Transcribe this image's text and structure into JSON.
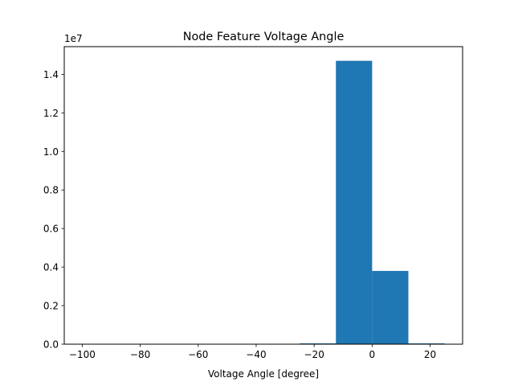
{
  "chart_data": {
    "type": "bar",
    "title": "Node Feature Voltage Angle",
    "xlabel": "Voltage Angle [degree]",
    "ylabel": "",
    "y_offset_label": "1e7",
    "xlim": [
      -106.2,
      31.2
    ],
    "ylim": [
      0,
      15435000
    ],
    "x_ticks": [
      -100,
      -80,
      -60,
      -40,
      -20,
      0,
      20
    ],
    "x_tick_labels": [
      "−100",
      "−80",
      "−60",
      "−40",
      "−20",
      "0",
      "20"
    ],
    "y_ticks": [
      0,
      2000000,
      4000000,
      6000000,
      8000000,
      10000000,
      12000000,
      14000000
    ],
    "y_tick_labels": [
      "0.0",
      "0.2",
      "0.4",
      "0.6",
      "0.8",
      "1.0",
      "1.2",
      "1.4"
    ],
    "bins": [
      {
        "x0": -100,
        "x1": -87.5,
        "count": 0
      },
      {
        "x0": -87.5,
        "x1": -75,
        "count": 0
      },
      {
        "x0": -75,
        "x1": -62.5,
        "count": 0
      },
      {
        "x0": -62.5,
        "x1": -50,
        "count": 0
      },
      {
        "x0": -50,
        "x1": -37.5,
        "count": 0
      },
      {
        "x0": -37.5,
        "x1": -25,
        "count": 0
      },
      {
        "x0": -25,
        "x1": -12.5,
        "count": 40000
      },
      {
        "x0": -12.5,
        "x1": 0,
        "count": 14700000
      },
      {
        "x0": 0,
        "x1": 12.5,
        "count": 3800000
      },
      {
        "x0": 12.5,
        "x1": 25,
        "count": 40000
      }
    ],
    "bar_color": "#1f77b4",
    "grid": false,
    "legend": "none"
  }
}
